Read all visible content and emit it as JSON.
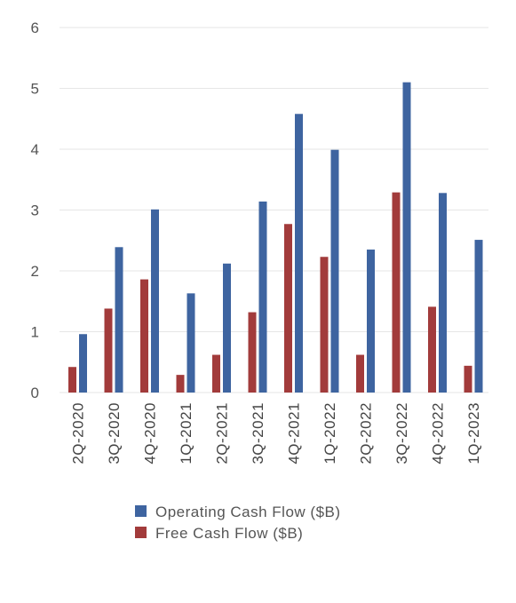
{
  "chart_data": {
    "type": "bar",
    "categories": [
      "2Q-2020",
      "3Q-2020",
      "4Q-2020",
      "1Q-2021",
      "2Q-2021",
      "3Q-2021",
      "4Q-2021",
      "1Q-2022",
      "2Q-2022",
      "3Q-2022",
      "4Q-2022",
      "1Q-2023"
    ],
    "series": [
      {
        "name": "Free Cash Flow ($B)",
        "color": "#a23b3b",
        "values": [
          0.42,
          1.38,
          1.86,
          0.29,
          0.62,
          1.32,
          2.77,
          2.23,
          0.62,
          3.29,
          1.41,
          0.44
        ]
      },
      {
        "name": "Operating Cash Flow ($B)",
        "color": "#3e64a0",
        "values": [
          0.96,
          2.39,
          3.01,
          1.63,
          2.12,
          3.14,
          4.58,
          3.99,
          2.35,
          5.1,
          3.28,
          2.51
        ]
      }
    ],
    "yticks": [
      "0",
      "1",
      "2",
      "3",
      "4",
      "5",
      "6"
    ],
    "ylim": [
      0,
      6
    ],
    "grid": true,
    "legend": {
      "placement": "bottom",
      "entries": [
        "Operating Cash Flow ($B)",
        "Free Cash Flow ($B)"
      ]
    }
  }
}
